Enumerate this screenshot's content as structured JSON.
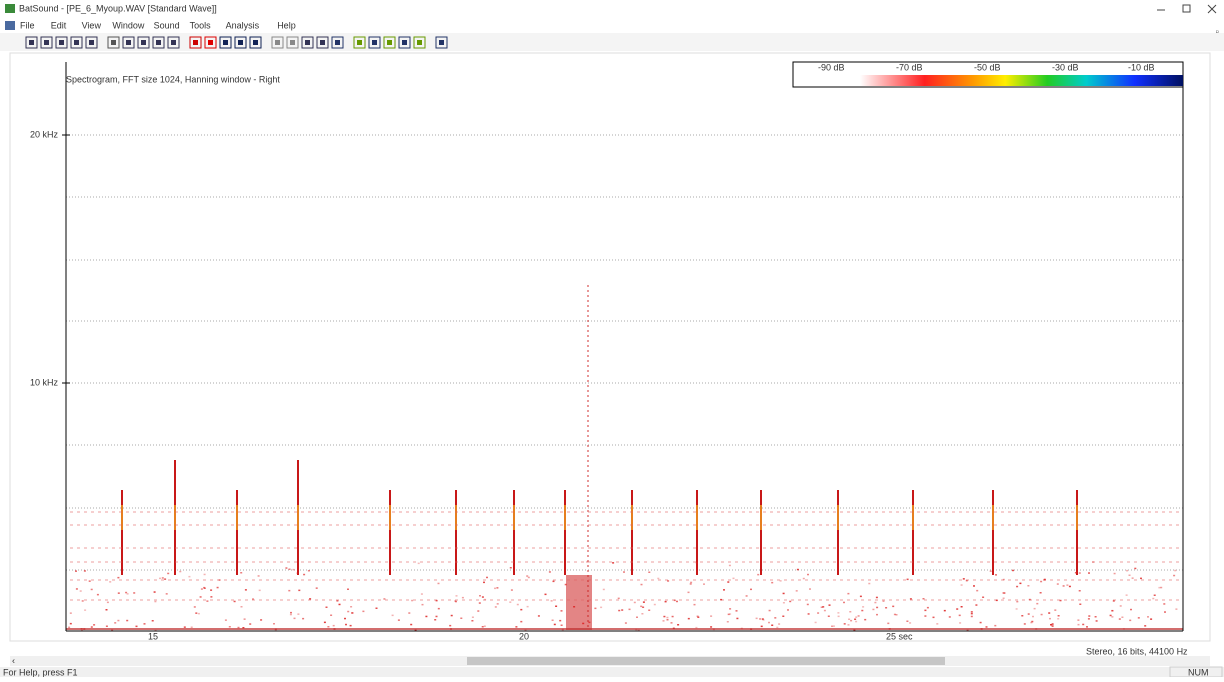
{
  "window": {
    "title": "BatSound - [PE_6_Myoup.WAV [Standard Wave]]",
    "menu": [
      "File",
      "Edit",
      "View",
      "Window",
      "Sound",
      "Tools",
      "Analysis",
      "Help"
    ]
  },
  "plot": {
    "heading": "Spectrogram, FFT size 1024, Hanning window - Right",
    "y_labels": [
      "20 kHz",
      "10 kHz"
    ],
    "x_labels": [
      "15",
      "20",
      "25 sec"
    ],
    "color_scale": [
      "-90 dB",
      "-70 dB",
      "-50 dB",
      "-30 dB",
      "-10 dB"
    ]
  },
  "status": {
    "help": "For Help, press F1",
    "format": "Stereo, 16 bits, 44100 Hz",
    "indicator": "NUM"
  }
}
